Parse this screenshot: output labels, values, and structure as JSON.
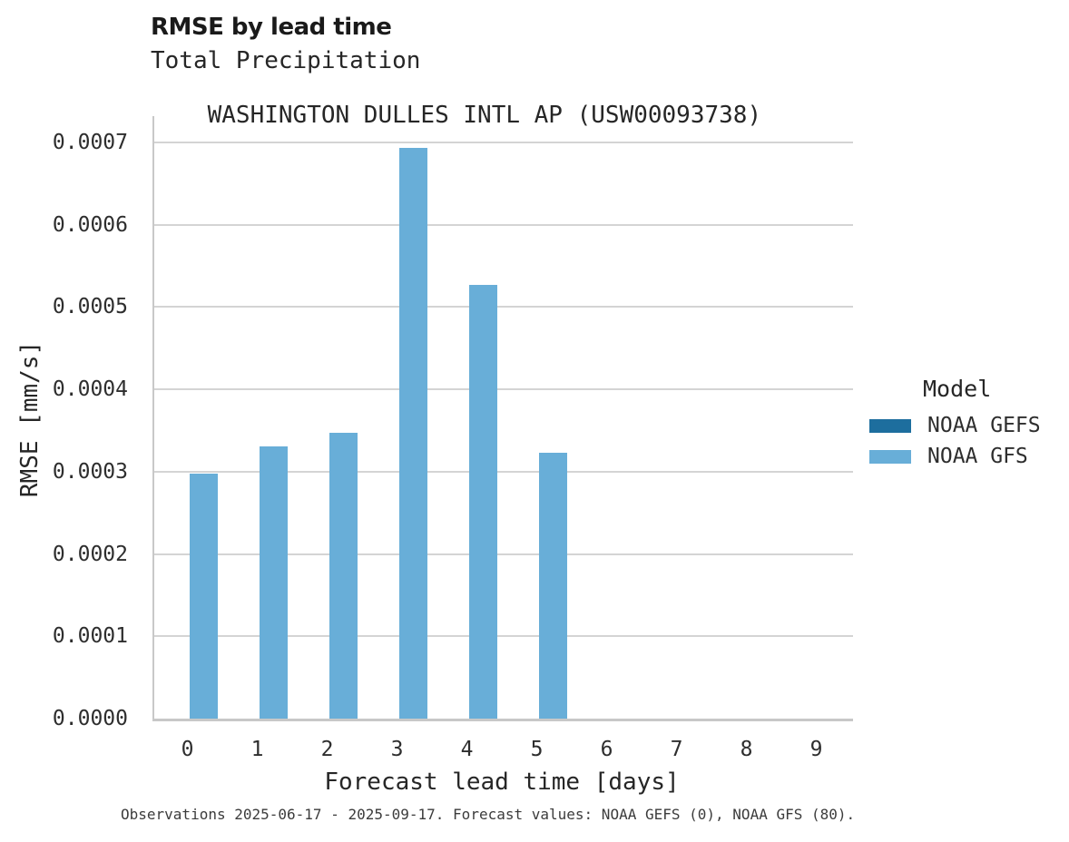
{
  "header": {
    "title": "RMSE by lead time",
    "subtitle_line1": "Total Precipitation",
    "subtitle_line2": "WASHINGTON DULLES INTL AP (USW00093738)"
  },
  "chart_data": {
    "type": "bar",
    "title": "RMSE by lead time",
    "variable": "Total Precipitation",
    "station": "WASHINGTON DULLES INTL AP (USW00093738)",
    "xlabel": "Forecast lead time [days]",
    "ylabel": "RMSE [mm/s]",
    "categories": [
      "0",
      "1",
      "2",
      "3",
      "4",
      "5",
      "6",
      "7",
      "8",
      "9"
    ],
    "series": [
      {
        "name": "NOAA GEFS",
        "color": "#1d6e9e",
        "values": [
          null,
          null,
          null,
          null,
          null,
          null,
          null,
          null,
          null,
          null
        ]
      },
      {
        "name": "NOAA GFS",
        "color": "#68aed8",
        "values": [
          0.000298,
          0.000331,
          0.000347,
          0.000693,
          0.000527,
          0.000323,
          null,
          null,
          null,
          null
        ]
      }
    ],
    "ylim": [
      0,
      0.00073
    ],
    "yticks": [
      {
        "value": 0.0,
        "label": "0.0000"
      },
      {
        "value": 0.0001,
        "label": "0.0001"
      },
      {
        "value": 0.0002,
        "label": "0.0002"
      },
      {
        "value": 0.0003,
        "label": "0.0003"
      },
      {
        "value": 0.0004,
        "label": "0.0004"
      },
      {
        "value": 0.0005,
        "label": "0.0005"
      },
      {
        "value": 0.0006,
        "label": "0.0006"
      },
      {
        "value": 0.0007,
        "label": "0.0007"
      }
    ],
    "grid": true,
    "legend_position": "right"
  },
  "axes": {
    "xlabel": "Forecast lead time [days]",
    "ylabel": "RMSE [mm/s]"
  },
  "legend": {
    "title": "Model",
    "items": [
      {
        "label": "NOAA GEFS",
        "color": "#1d6e9e"
      },
      {
        "label": "NOAA GFS",
        "color": "#68aed8"
      }
    ]
  },
  "footer": {
    "note": "Observations 2025-06-17 - 2025-09-17. Forecast values: NOAA GEFS (0), NOAA GFS (80)."
  },
  "colors": {
    "background": "#ffffff",
    "grid": "#d4d4d4",
    "spine": "#c8c8c8",
    "gefs_blue": "#1d6e9e",
    "gfs_blue": "#68aed8"
  }
}
